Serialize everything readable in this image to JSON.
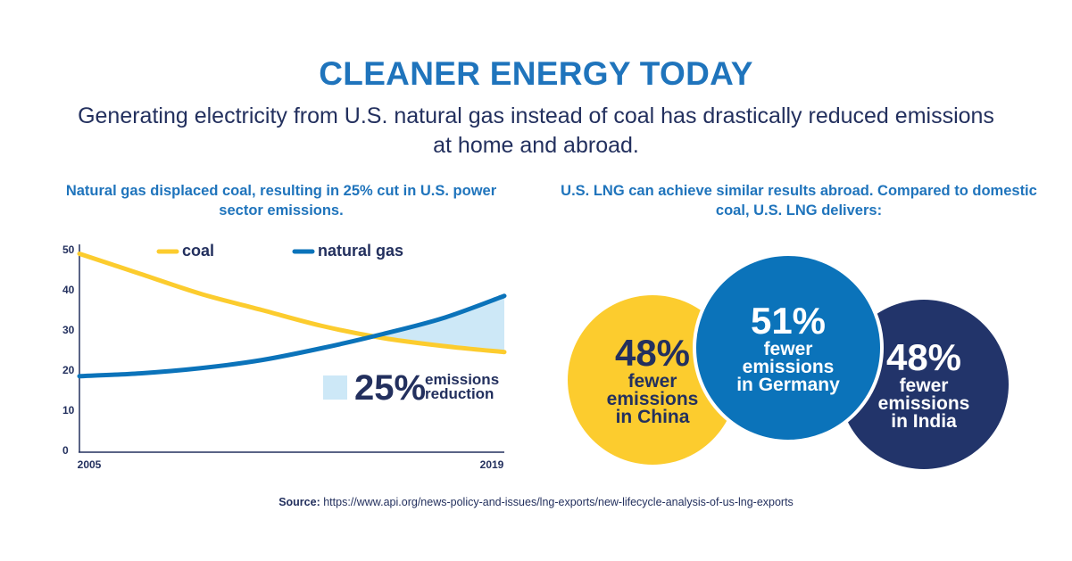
{
  "title": "CLEANER ENERGY TODAY",
  "subtitle": "Generating electricity from U.S. natural gas instead of coal has drastically reduced emissions at home and abroad.",
  "left_heading": "Natural gas displaced coal, resulting in 25% cut in U.S. power sector emissions.",
  "right_heading": "U.S. LNG can achieve similar results abroad. Compared to domestic coal, U.S. LNG delivers:",
  "colors": {
    "title": "#1f74bc",
    "text": "#23305e",
    "coal": "#fccc2e",
    "natural_gas": "#0b73ba",
    "reduction_fill": "#cde8f7",
    "india": "#22346a"
  },
  "chart_data": [
    {
      "type": "line",
      "title": "",
      "xlabel": "",
      "ylabel": "",
      "x": [
        2005,
        2019
      ],
      "xlim": [
        2005,
        2019
      ],
      "x_tick_labels": [
        "2005",
        "2019"
      ],
      "ylim": [
        0,
        50
      ],
      "y_ticks": [
        0,
        10,
        20,
        30,
        40,
        50
      ],
      "grid": false,
      "legend_position": "top",
      "series": [
        {
          "name": "coal",
          "color": "#fccc2e",
          "x": [
            2005,
            2007,
            2009,
            2011,
            2013,
            2015,
            2017,
            2019
          ],
          "y": [
            49,
            44,
            39,
            35,
            31,
            28,
            26,
            24.5
          ]
        },
        {
          "name": "natural gas",
          "color": "#0b73ba",
          "x": [
            2005,
            2007,
            2009,
            2011,
            2013,
            2015,
            2017,
            2019
          ],
          "y": [
            18.5,
            19.2,
            20.5,
            22.5,
            25.5,
            29,
            33,
            38.5
          ]
        }
      ],
      "annotation": {
        "value": "25%",
        "label_line1": "emissions",
        "label_line2": "reduction"
      }
    },
    {
      "type": "bubble",
      "items": [
        {
          "value": "48%",
          "line1": "fewer",
          "line2": "emissions",
          "line3": "in China",
          "color": "#fccc2e"
        },
        {
          "value": "51%",
          "line1": "fewer",
          "line2": "emissions",
          "line3": "in Germany",
          "color": "#0b73ba"
        },
        {
          "value": "48%",
          "line1": "fewer",
          "line2": "emissions",
          "line3": "in India",
          "color": "#22346a"
        }
      ]
    }
  ],
  "source": {
    "label": "Source:",
    "url": "https://www.api.org/news-policy-and-issues/lng-exports/new-lifecycle-analysis-of-us-lng-exports"
  }
}
